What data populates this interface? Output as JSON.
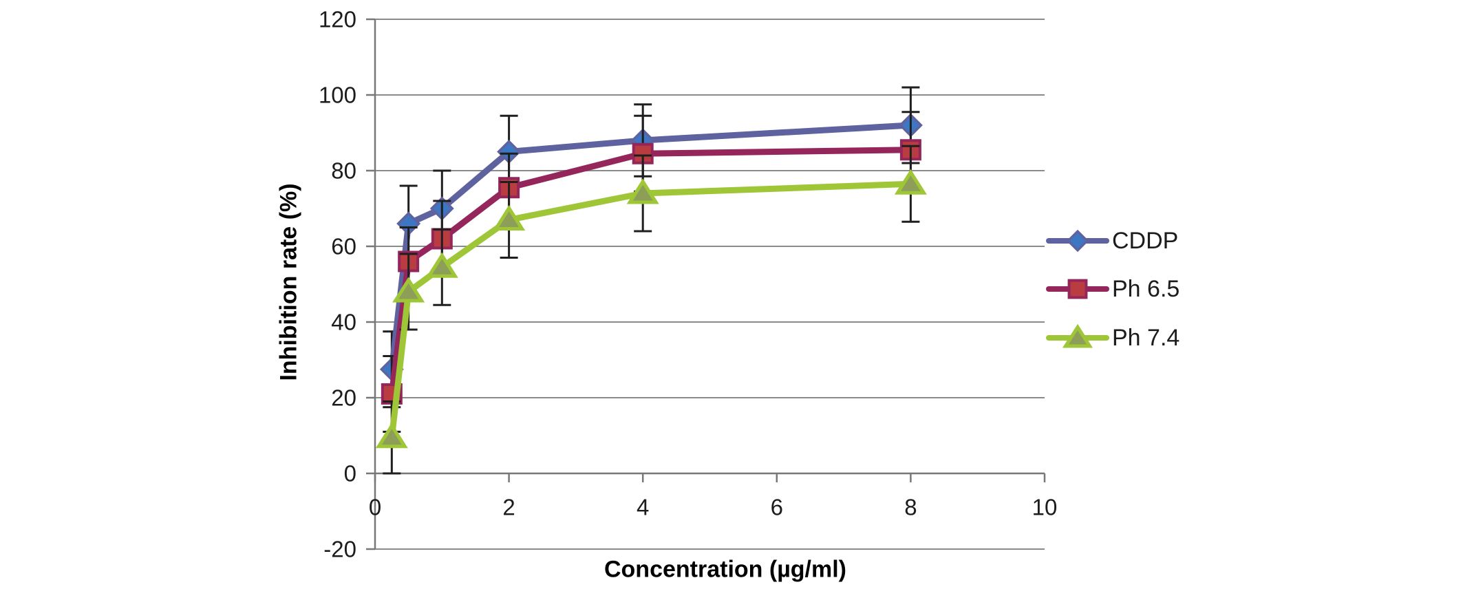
{
  "chart_data": {
    "type": "line",
    "title": "",
    "xlabel": "Concentration (µg/ml)",
    "ylabel": "Inhibition rate (%)",
    "x_tick_labels": [
      "0",
      "2",
      "4",
      "6",
      "8",
      "10"
    ],
    "x_tick_values": [
      0,
      2,
      4,
      6,
      8,
      10
    ],
    "y_tick_labels": [
      "120",
      "100",
      "80",
      "60",
      "40",
      "20",
      "0",
      "-20"
    ],
    "y_tick_values": [
      120,
      100,
      80,
      60,
      40,
      20,
      0,
      -20
    ],
    "xlim": [
      0,
      10
    ],
    "ylim": [
      -20,
      120
    ],
    "grid": "horizontal",
    "legend_position": "right",
    "background_color": "#ffffff",
    "gridline_color": "#8a8a8a",
    "axis_line_color": "#777777",
    "tick_label_color": "#1c1c1c",
    "error_bar_color": "#1f1f1f",
    "x": [
      0.25,
      0.5,
      1,
      2,
      4,
      8
    ],
    "series": [
      {
        "name": "CDDP",
        "marker": "diamond",
        "line_color": "#5E63A0",
        "marker_fill": "#3D76C2",
        "marker_edge": "#5E63A0",
        "values": [
          27.5,
          66,
          70,
          85,
          88,
          92
        ],
        "errors": [
          10,
          10,
          10,
          9.5,
          9.5,
          10
        ]
      },
      {
        "name": "Ph 6.5",
        "marker": "square",
        "line_color": "#94265C",
        "marker_fill": "#B93C41",
        "marker_edge": "#94265C",
        "values": [
          21,
          56,
          62,
          75.5,
          84.5,
          85.5
        ],
        "errors": [
          10,
          9,
          10,
          9,
          10,
          10
        ]
      },
      {
        "name": "Ph 7.4",
        "marker": "triangle",
        "line_color": "#9EC637",
        "marker_fill": "#8C9E58",
        "marker_edge": "#9EC637",
        "values": [
          9.5,
          48,
          54.5,
          67,
          74,
          76.5
        ],
        "errors": [
          9.5,
          10,
          10,
          10,
          10,
          10
        ]
      }
    ]
  }
}
